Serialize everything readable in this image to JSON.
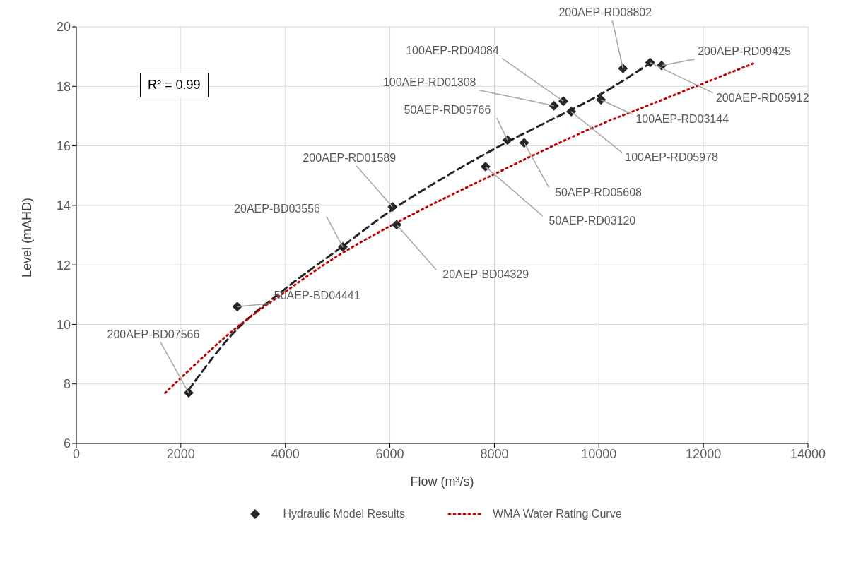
{
  "chart_data": {
    "type": "scatter",
    "xlabel": "Flow (m³/s)",
    "ylabel": "Level (mAHD)",
    "xlim": [
      0,
      14000
    ],
    "xticks": [
      0,
      2000,
      4000,
      6000,
      8000,
      10000,
      12000,
      14000
    ],
    "ylim": [
      6,
      20
    ],
    "yticks": [
      6,
      8,
      10,
      12,
      14,
      16,
      18,
      20
    ],
    "grid": true,
    "legend": "bottom",
    "series": [
      {
        "name": "Hydraulic Model Results",
        "color": "#262626",
        "marker": "diamond",
        "x": [
          2150,
          3080,
          5100,
          6050,
          6130,
          7830,
          8250,
          8570,
          9140,
          9320,
          9470,
          10040,
          10460,
          10980,
          11200
        ],
        "values": [
          7.7,
          10.6,
          12.6,
          13.95,
          13.35,
          15.3,
          16.2,
          16.1,
          17.35,
          17.5,
          17.15,
          17.55,
          18.6,
          18.8,
          18.7
        ]
      },
      {
        "type": "line",
        "color": "#262626",
        "line_style": "dashed",
        "marker": "none",
        "x": [
          2150,
          3000,
          4000,
          5000,
          6000,
          7000,
          8000,
          9000,
          10000,
          11000
        ],
        "values": [
          7.8,
          9.7,
          11.2,
          12.5,
          13.8,
          14.9,
          15.9,
          16.8,
          17.7,
          18.8
        ]
      },
      {
        "type": "line",
        "name": "WMA Water Rating Curve",
        "color": "#c00000",
        "line_style": "dotted",
        "marker": "none",
        "x": [
          1700,
          2000,
          3000,
          4000,
          5000,
          6000,
          7000,
          8000,
          9000,
          10000,
          11000,
          12000,
          13000
        ],
        "values": [
          7.7,
          8.2,
          9.8,
          11.1,
          12.3,
          13.3,
          14.2,
          15.05,
          15.9,
          16.7,
          17.4,
          18.1,
          18.8
        ]
      }
    ],
    "annotations": [
      "R² = 0.99",
      {
        "text": "200AEP-BD07566",
        "x": 2150,
        "y": 7.7
      },
      {
        "text": "50AEP-BD04441",
        "x": 3080,
        "y": 10.6
      },
      {
        "text": "20AEP-BD03556",
        "x": 5100,
        "y": 12.6
      },
      {
        "text": "200AEP-RD01589",
        "x": 6050,
        "y": 13.95
      },
      {
        "text": "20AEP-BD04329",
        "x": 6130,
        "y": 13.35
      },
      {
        "text": "50AEP-RD03120",
        "x": 7830,
        "y": 15.3
      },
      {
        "text": "50AEP-RD05766",
        "x": 8250,
        "y": 16.2
      },
      {
        "text": "50AEP-RD05608",
        "x": 8570,
        "y": 16.1
      },
      {
        "text": "100AEP-RD01308",
        "x": 9140,
        "y": 17.35
      },
      {
        "text": "100AEP-RD04084",
        "x": 9320,
        "y": 17.5
      },
      {
        "text": "100AEP-RD05978",
        "x": 9470,
        "y": 17.15
      },
      {
        "text": "100AEP-RD03144",
        "x": 10040,
        "y": 17.55
      },
      {
        "text": "200AEP-RD08802",
        "x": 10460,
        "y": 18.6
      },
      {
        "text": "200AEP-RD05912",
        "x": 10980,
        "y": 18.8
      },
      {
        "text": "200AEP-RD09425",
        "x": 11200,
        "y": 18.7
      }
    ]
  }
}
